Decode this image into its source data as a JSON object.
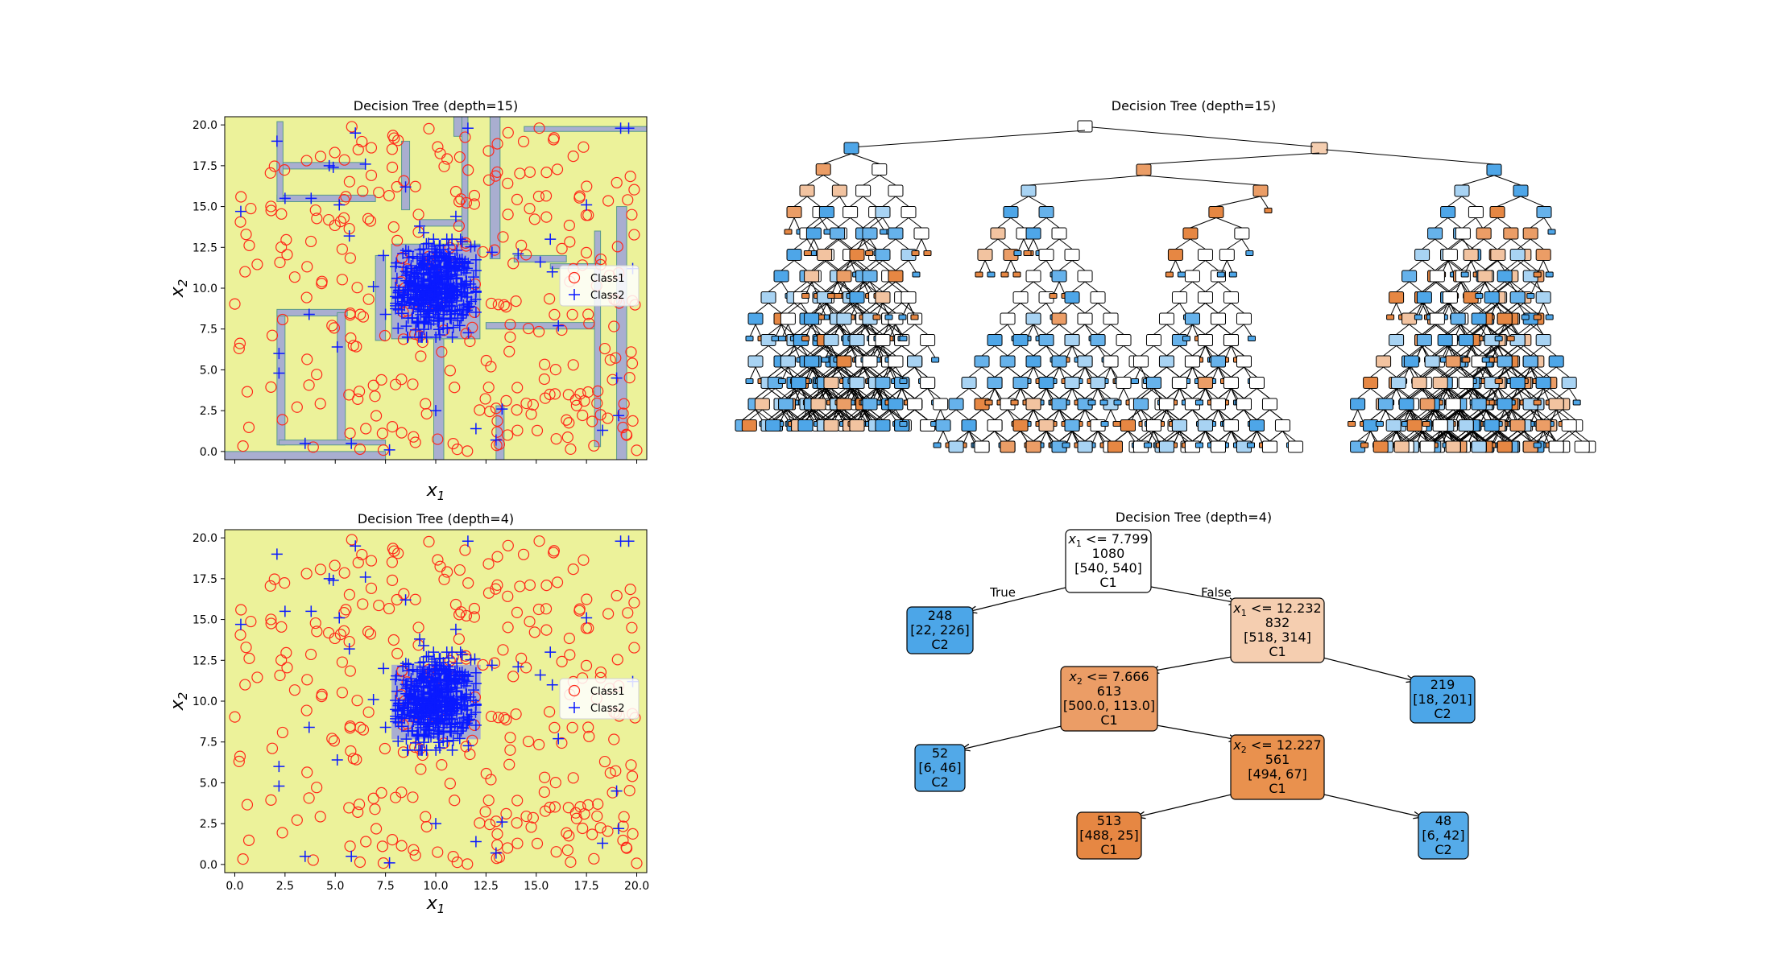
{
  "chart_data": [
    {
      "type": "scatter",
      "title": "Decision Tree (depth=15)",
      "xlabel": "x1",
      "ylabel": "x2",
      "xlim": [
        -0.5,
        20.5
      ],
      "ylim": [
        -0.5,
        20.5
      ],
      "xticks": [],
      "yticks": [
        "0.0",
        "2.5",
        "5.0",
        "7.5",
        "10.0",
        "12.5",
        "15.0",
        "17.5",
        "20.0"
      ],
      "background_color": "#ecf29a",
      "region_color": "#a9aed0",
      "legend": {
        "position": "center-right",
        "entries": [
          "Class1",
          "Class2"
        ]
      },
      "series": [
        {
          "name": "Class1",
          "marker": "circle",
          "color": "#ff2a1a",
          "count": 540,
          "distribution": "uniform",
          "x_range": [
            0,
            20
          ],
          "y_range": [
            0,
            20
          ]
        },
        {
          "name": "Class2",
          "marker": "plus",
          "color": "#0a1aff",
          "count": 540,
          "cluster": {
            "x_range": [
              8,
              12
            ],
            "y_range": [
              7,
              13
            ],
            "center": [
              10,
              10
            ],
            "count": 480
          },
          "scattered_points": [
            [
              0.3,
              14.7
            ],
            [
              2.1,
              19
            ],
            [
              2.2,
              6
            ],
            [
              2.2,
              4.8
            ],
            [
              2.5,
              15.5
            ],
            [
              3.7,
              8.4
            ],
            [
              3.8,
              15.5
            ],
            [
              3.5,
              0.5
            ],
            [
              4.7,
              17.5
            ],
            [
              4.9,
              17.4
            ],
            [
              5.1,
              6.4
            ],
            [
              5.2,
              15.1
            ],
            [
              5.7,
              13.2
            ],
            [
              5.8,
              0.5
            ],
            [
              6.0,
              19.5
            ],
            [
              6.5,
              17.6
            ],
            [
              6.9,
              10.1
            ],
            [
              7.4,
              12.0
            ],
            [
              7.5,
              8.4
            ],
            [
              7.7,
              0.1
            ],
            [
              8.5,
              16.2
            ],
            [
              9.2,
              13.8
            ],
            [
              9.4,
              13.4
            ],
            [
              10.0,
              2.5
            ],
            [
              11.0,
              14.4
            ],
            [
              11.6,
              19.8
            ],
            [
              12.0,
              1.4
            ],
            [
              12.8,
              12.2
            ],
            [
              13.0,
              0.7
            ],
            [
              13.3,
              2.6
            ],
            [
              14.1,
              12.1
            ],
            [
              15.2,
              11.6
            ],
            [
              15.7,
              13.0
            ],
            [
              15.8,
              11.0
            ],
            [
              16.1,
              7.7
            ],
            [
              17.5,
              15.1
            ],
            [
              18.3,
              1.3
            ],
            [
              19.0,
              4.5
            ],
            [
              19.1,
              2.2
            ],
            [
              19.2,
              19.8
            ],
            [
              19.6,
              19.8
            ],
            [
              19.8,
              11.2
            ]
          ]
        }
      ]
    },
    {
      "type": "tree",
      "title": "Decision Tree (depth=15)",
      "note": "Full depth-15 tree; node labels are not legible at this size"
    },
    {
      "type": "scatter",
      "title": "Decision Tree (depth=4)",
      "xlabel": "x1",
      "ylabel": "x2",
      "xlim": [
        -0.5,
        20.5
      ],
      "ylim": [
        -0.5,
        20.5
      ],
      "xticks": [
        "0.0",
        "2.5",
        "5.0",
        "7.5",
        "10.0",
        "12.5",
        "15.0",
        "17.5",
        "20.0"
      ],
      "yticks": [
        "0.0",
        "2.5",
        "5.0",
        "7.5",
        "10.0",
        "12.5",
        "15.0",
        "17.5",
        "20.0"
      ],
      "background_color": "#ecf29a",
      "region_color": "#a9aed0",
      "region": {
        "x": [
          7.799,
          12.232
        ],
        "y": [
          7.666,
          12.227
        ],
        "class": "Class2"
      },
      "legend": {
        "position": "center-right",
        "entries": [
          "Class1",
          "Class2"
        ]
      }
    },
    {
      "type": "tree",
      "title": "Decision Tree (depth=4)",
      "edge_labels": {
        "true": "True",
        "false": "False"
      },
      "nodes": [
        {
          "id": "root",
          "split_var": "x",
          "split_sub": "1",
          "split_rest": " <= 7.799",
          "samples": "1080",
          "value": "[540, 540]",
          "class": "C1",
          "color": "#ffffff"
        },
        {
          "id": "L",
          "samples": "248",
          "value": "[22, 226]",
          "class": "C2",
          "color": "#4ca6e8"
        },
        {
          "id": "R",
          "split_var": "x",
          "split_sub": "1",
          "split_rest": " <= 12.232",
          "samples": "832",
          "value": "[518, 314]",
          "class": "C1",
          "color": "#f5ceb0"
        },
        {
          "id": "RL",
          "split_var": "x",
          "split_sub": "2",
          "split_rest": " <= 7.666",
          "samples": "613",
          "value": "[500.0, 113.0]",
          "class": "C1",
          "color": "#eb9d66"
        },
        {
          "id": "RR",
          "samples": "219",
          "value": "[18, 201]",
          "class": "C2",
          "color": "#4ca6e8"
        },
        {
          "id": "RLL",
          "samples": "52",
          "value": "[6, 46]",
          "class": "C2",
          "color": "#52a9e8"
        },
        {
          "id": "RLR",
          "split_var": "x",
          "split_sub": "2",
          "split_rest": " <= 12.227",
          "samples": "561",
          "value": "[494, 67]",
          "class": "C1",
          "color": "#e9914e"
        },
        {
          "id": "RLRL",
          "samples": "513",
          "value": "[488, 25]",
          "class": "C1",
          "color": "#e68743"
        },
        {
          "id": "RLRR",
          "samples": "48",
          "value": "[6, 42]",
          "class": "C2",
          "color": "#55abe9"
        }
      ]
    }
  ]
}
